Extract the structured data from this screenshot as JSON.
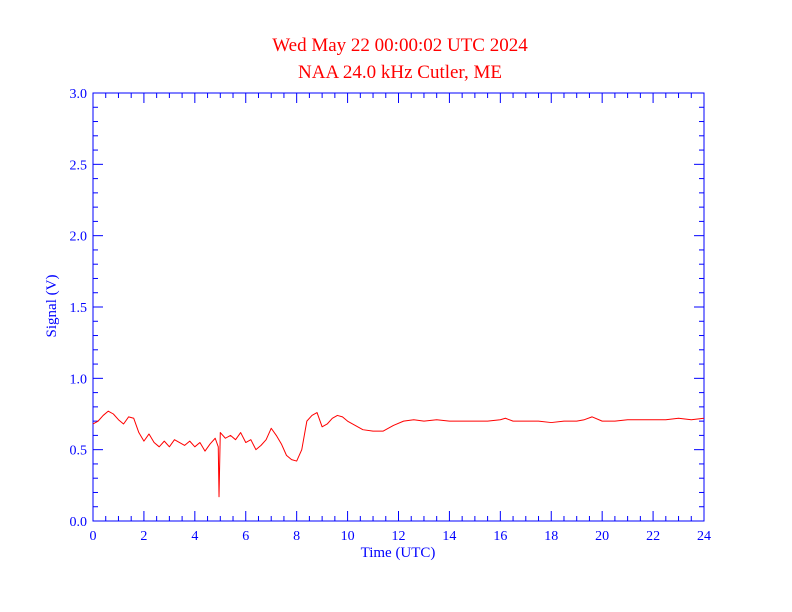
{
  "chart_data": {
    "type": "line",
    "title": "Wed May 22 00:00:02 UTC 2024",
    "subtitle": "NAA 24.0 kHz Cutler, ME",
    "xlabel": "Time (UTC)",
    "ylabel": "Signal (V)",
    "xlim": [
      0,
      24
    ],
    "ylim": [
      0,
      3.0
    ],
    "x_ticks": [
      "0",
      "2",
      "4",
      "6",
      "8",
      "10",
      "12",
      "14",
      "16",
      "18",
      "20",
      "22",
      "24"
    ],
    "y_ticks": [
      "0.0",
      "0.5",
      "1.0",
      "1.5",
      "2.0",
      "2.5",
      "3.0"
    ],
    "grid": false,
    "colors": {
      "axis": "#0000ff",
      "title": "#ff0000",
      "series": "#ff0000"
    },
    "series": [
      {
        "x": [
          0,
          0.2,
          0.4,
          0.6,
          0.8,
          1.0,
          1.2,
          1.4,
          1.6,
          1.8,
          2.0,
          2.2,
          2.4,
          2.6,
          2.8,
          3.0,
          3.2,
          3.4,
          3.6,
          3.8,
          4.0,
          4.2,
          4.4,
          4.6,
          4.8,
          4.92,
          4.95,
          5.0,
          5.2,
          5.4,
          5.6,
          5.8,
          6.0,
          6.2,
          6.4,
          6.6,
          6.8,
          7.0,
          7.2,
          7.4,
          7.6,
          7.8,
          8.0,
          8.2,
          8.4,
          8.6,
          8.8,
          9.0,
          9.2,
          9.4,
          9.6,
          9.8,
          10.0,
          10.3,
          10.6,
          11.0,
          11.4,
          11.8,
          12.2,
          12.6,
          13.0,
          13.5,
          14.0,
          14.5,
          15.0,
          15.5,
          16.0,
          16.2,
          16.5,
          17.0,
          17.5,
          18.0,
          18.5,
          19.0,
          19.3,
          19.6,
          20.0,
          20.5,
          21.0,
          21.5,
          22.0,
          22.5,
          23.0,
          23.5,
          24.0
        ],
        "y": [
          0.68,
          0.7,
          0.74,
          0.77,
          0.75,
          0.71,
          0.68,
          0.73,
          0.72,
          0.62,
          0.56,
          0.61,
          0.55,
          0.52,
          0.56,
          0.52,
          0.57,
          0.55,
          0.53,
          0.56,
          0.52,
          0.55,
          0.49,
          0.54,
          0.58,
          0.52,
          0.17,
          0.62,
          0.58,
          0.6,
          0.57,
          0.62,
          0.55,
          0.57,
          0.5,
          0.53,
          0.57,
          0.65,
          0.6,
          0.54,
          0.46,
          0.43,
          0.42,
          0.5,
          0.7,
          0.74,
          0.76,
          0.66,
          0.68,
          0.72,
          0.74,
          0.73,
          0.7,
          0.67,
          0.64,
          0.63,
          0.63,
          0.67,
          0.7,
          0.71,
          0.7,
          0.71,
          0.7,
          0.7,
          0.7,
          0.7,
          0.71,
          0.72,
          0.7,
          0.7,
          0.7,
          0.69,
          0.7,
          0.7,
          0.71,
          0.73,
          0.7,
          0.7,
          0.71,
          0.71,
          0.71,
          0.71,
          0.72,
          0.71,
          0.72
        ]
      }
    ]
  }
}
